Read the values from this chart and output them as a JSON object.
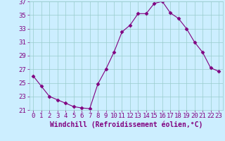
{
  "x": [
    0,
    1,
    2,
    3,
    4,
    5,
    6,
    7,
    8,
    9,
    10,
    11,
    12,
    13,
    14,
    15,
    16,
    17,
    18,
    19,
    20,
    21,
    22,
    23
  ],
  "y": [
    26,
    24.5,
    23,
    22.5,
    22,
    21.5,
    21.3,
    21.2,
    24.8,
    27,
    29.5,
    32.5,
    33.5,
    35.2,
    35.2,
    36.7,
    37,
    35.3,
    34.5,
    33,
    31,
    29.5,
    27.2,
    26.7
  ],
  "line_color": "#800080",
  "marker": "D",
  "marker_size": 2.5,
  "bg_color": "#cceeff",
  "grid_color": "#99cccc",
  "xlabel": "Windchill (Refroidissement éolien,°C)",
  "xlabel_fontsize": 7,
  "ylim": [
    21,
    37
  ],
  "xlim": [
    -0.5,
    23.5
  ],
  "yticks": [
    21,
    23,
    25,
    27,
    29,
    31,
    33,
    35,
    37
  ],
  "xticks": [
    0,
    1,
    2,
    3,
    4,
    5,
    6,
    7,
    8,
    9,
    10,
    11,
    12,
    13,
    14,
    15,
    16,
    17,
    18,
    19,
    20,
    21,
    22,
    23
  ],
  "tick_fontsize": 6.5,
  "tick_color": "#800080"
}
